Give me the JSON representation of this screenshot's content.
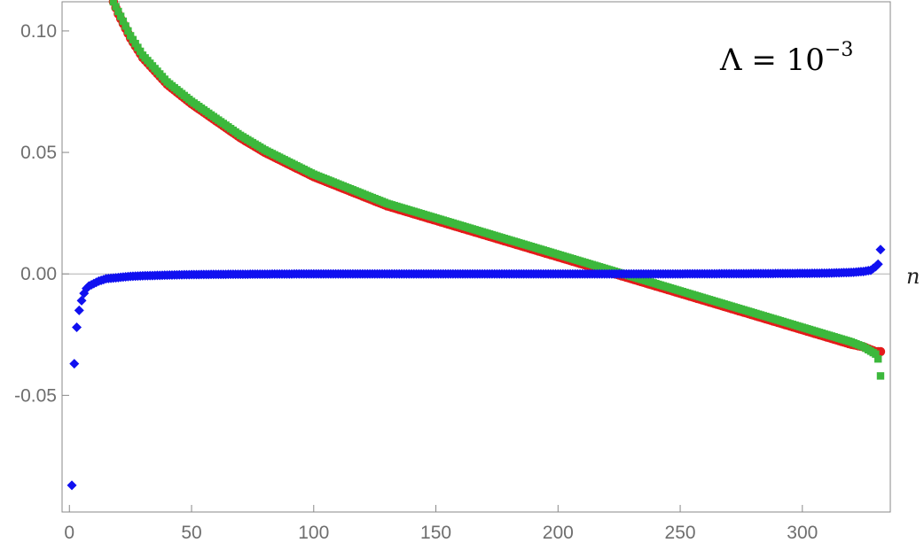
{
  "chart_data": {
    "type": "scatter",
    "title": "",
    "xlabel": "n",
    "ylabel": "",
    "xlim": [
      -3,
      336
    ],
    "ylim": [
      -0.098,
      0.112
    ],
    "x_ticks": [
      0,
      50,
      100,
      150,
      200,
      250,
      300
    ],
    "y_ticks": [
      0.1,
      0.05,
      0.0,
      -0.05
    ],
    "x_tick_labels": [
      "0",
      "50",
      "100",
      "150",
      "200",
      "250",
      "300"
    ],
    "y_tick_labels": [
      "0.10",
      "0.05",
      "0.00",
      "-0.05"
    ],
    "grid": false,
    "frame": true,
    "zero_line": true,
    "annotation": {
      "base": "Λ = 10",
      "exponent": "−3",
      "position": "top-right"
    },
    "colors": {
      "red": "#e41a1a",
      "green": "#3cb83c",
      "blue": "#1010f0",
      "axis": "#888888",
      "zero": "#b0b0b0"
    },
    "series": [
      {
        "marker": "circle",
        "color": "#e41a1a",
        "points": [
          [
            18,
            0.112
          ],
          [
            20,
            0.107
          ],
          [
            25,
            0.097
          ],
          [
            30,
            0.089
          ],
          [
            40,
            0.078
          ],
          [
            50,
            0.07
          ],
          [
            60,
            0.063
          ],
          [
            70,
            0.056
          ],
          [
            80,
            0.05
          ],
          [
            90,
            0.045
          ],
          [
            100,
            0.04
          ],
          [
            110,
            0.036
          ],
          [
            120,
            0.032
          ],
          [
            130,
            0.028
          ],
          [
            140,
            0.025
          ],
          [
            150,
            0.022
          ],
          [
            160,
            0.019
          ],
          [
            170,
            0.016
          ],
          [
            180,
            0.013
          ],
          [
            190,
            0.01
          ],
          [
            200,
            0.007
          ],
          [
            210,
            0.004
          ],
          [
            220,
            0.001
          ],
          [
            230,
            -0.002
          ],
          [
            240,
            -0.005
          ],
          [
            250,
            -0.008
          ],
          [
            260,
            -0.011
          ],
          [
            270,
            -0.014
          ],
          [
            280,
            -0.017
          ],
          [
            290,
            -0.02
          ],
          [
            300,
            -0.023
          ],
          [
            310,
            -0.026
          ],
          [
            320,
            -0.029
          ],
          [
            325,
            -0.03
          ],
          [
            330,
            -0.032
          ],
          [
            332,
            -0.032
          ]
        ]
      },
      {
        "marker": "square",
        "color": "#3cb83c",
        "points": [
          [
            18,
            0.112
          ],
          [
            20,
            0.108
          ],
          [
            25,
            0.098
          ],
          [
            30,
            0.09
          ],
          [
            40,
            0.079
          ],
          [
            50,
            0.071
          ],
          [
            60,
            0.064
          ],
          [
            70,
            0.057
          ],
          [
            80,
            0.051
          ],
          [
            90,
            0.046
          ],
          [
            100,
            0.041
          ],
          [
            110,
            0.037
          ],
          [
            120,
            0.033
          ],
          [
            130,
            0.029
          ],
          [
            140,
            0.026
          ],
          [
            150,
            0.023
          ],
          [
            160,
            0.02
          ],
          [
            170,
            0.017
          ],
          [
            180,
            0.014
          ],
          [
            190,
            0.011
          ],
          [
            200,
            0.008
          ],
          [
            210,
            0.005
          ],
          [
            220,
            0.002
          ],
          [
            230,
            -0.001
          ],
          [
            240,
            -0.004
          ],
          [
            250,
            -0.007
          ],
          [
            260,
            -0.01
          ],
          [
            270,
            -0.013
          ],
          [
            280,
            -0.016
          ],
          [
            290,
            -0.019
          ],
          [
            300,
            -0.022
          ],
          [
            310,
            -0.025
          ],
          [
            320,
            -0.028
          ],
          [
            325,
            -0.03
          ],
          [
            330,
            -0.033
          ],
          [
            331,
            -0.035
          ],
          [
            332,
            -0.042
          ]
        ]
      },
      {
        "marker": "diamond",
        "color": "#1010f0",
        "points": [
          [
            1,
            -0.087
          ],
          [
            2,
            -0.037
          ],
          [
            3,
            -0.022
          ],
          [
            4,
            -0.015
          ],
          [
            5,
            -0.011
          ],
          [
            6,
            -0.008
          ],
          [
            7,
            -0.006
          ],
          [
            8,
            -0.005
          ],
          [
            10,
            -0.004
          ],
          [
            12,
            -0.003
          ],
          [
            15,
            -0.002
          ],
          [
            20,
            -0.0015
          ],
          [
            25,
            -0.001
          ],
          [
            30,
            -0.0008
          ],
          [
            40,
            -0.0005
          ],
          [
            50,
            -0.0003
          ],
          [
            60,
            -0.0002
          ],
          [
            80,
            -0.0001
          ],
          [
            100,
            0.0
          ],
          [
            150,
            0.0
          ],
          [
            200,
            0.0
          ],
          [
            250,
            0.0
          ],
          [
            280,
            0.0001
          ],
          [
            300,
            0.0002
          ],
          [
            310,
            0.0003
          ],
          [
            320,
            0.0006
          ],
          [
            325,
            0.001
          ],
          [
            328,
            0.0015
          ],
          [
            330,
            0.003
          ],
          [
            331,
            0.004
          ],
          [
            332,
            0.01
          ]
        ]
      }
    ]
  }
}
